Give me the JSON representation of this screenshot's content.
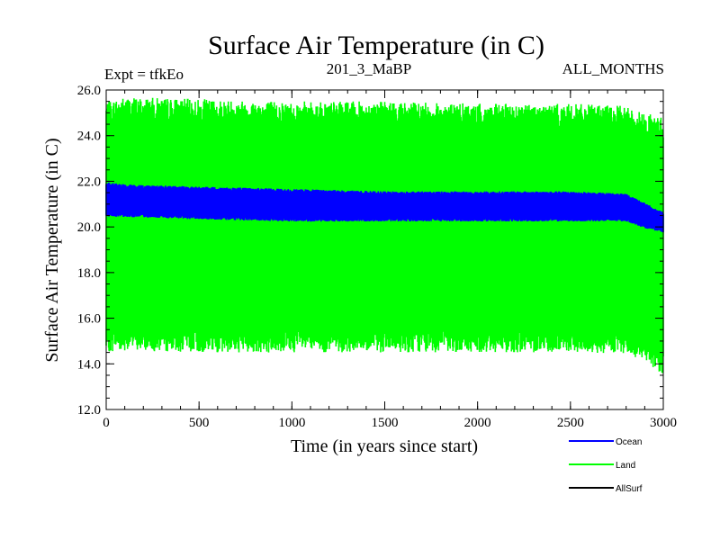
{
  "chart_data": {
    "type": "line",
    "title": "Surface Air Temperature (in C)",
    "subtitle_left": "Expt = tfkEo",
    "subtitle_center": "201_3_MaBP",
    "subtitle_right": "ALL_MONTHS",
    "xlabel": "Time (in years since start)",
    "ylabel": "Surface Air Temperature (in C)",
    "xlim": [
      0,
      3000
    ],
    "ylim": [
      12,
      26
    ],
    "xticks": [
      "0",
      "500",
      "1000",
      "1500",
      "2000",
      "2500",
      "3000"
    ],
    "yticks": [
      "12.0",
      "14.0",
      "16.0",
      "18.0",
      "20.0",
      "22.0",
      "24.0",
      "26.0"
    ],
    "grid": false,
    "legend_position": "bottom-right",
    "series": [
      {
        "name": "Land",
        "color": "#00ff00",
        "style": "oscillating band",
        "x": [
          0,
          100,
          500,
          1000,
          1500,
          2000,
          2500,
          2800,
          2900,
          3000
        ],
        "upper": [
          25.0,
          25.2,
          25.1,
          25.0,
          25.0,
          24.9,
          24.9,
          24.8,
          24.5,
          24.3
        ],
        "lower": [
          15.0,
          15.1,
          15.0,
          15.0,
          15.0,
          15.0,
          15.0,
          14.9,
          14.6,
          14.0
        ]
      },
      {
        "name": "Ocean",
        "color": "#0000ff",
        "style": "oscillating band",
        "x": [
          0,
          100,
          500,
          1000,
          1500,
          2000,
          2500,
          2800,
          2900,
          3000
        ],
        "upper": [
          21.9,
          21.8,
          21.7,
          21.6,
          21.5,
          21.5,
          21.5,
          21.4,
          21.0,
          20.6
        ],
        "lower": [
          20.5,
          20.5,
          20.4,
          20.3,
          20.3,
          20.3,
          20.3,
          20.3,
          20.0,
          19.8
        ]
      },
      {
        "name": "AllSurf",
        "color": "#000000",
        "style": "line"
      }
    ]
  }
}
